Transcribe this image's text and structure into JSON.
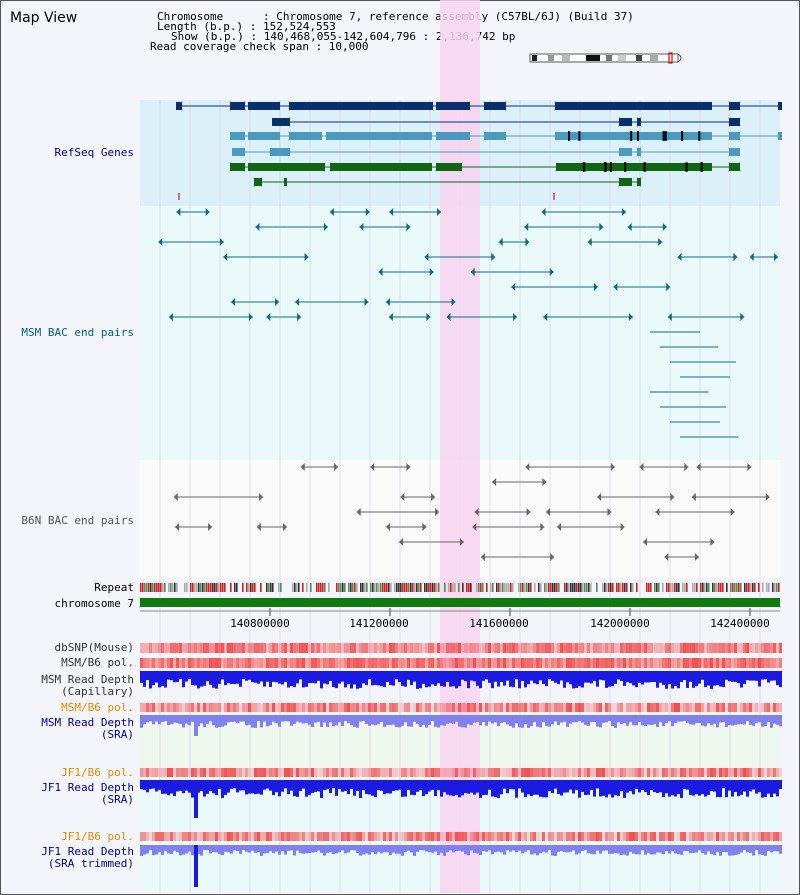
{
  "title": "Map View",
  "info": {
    "chromosome": "Chromosome      : Chromosome 7, reference assembly (C57BL/6J) (Build 37)",
    "length": "Length (b.p.) : 152,524,553",
    "show": "Show (b.p.) : 140,468,055-142,604,796 : 2,136,742 bp",
    "coverage": "Read coverage check span : 10,000"
  },
  "tracks": {
    "refseq": "RefSeq Genes",
    "msm_bac": "MSM BAC end pairs",
    "b6n_bac": "B6N BAC end pairs",
    "repeat": "Repeat",
    "chromosome": "chromosome 7",
    "dbsnp": "dbSNP(Mouse)",
    "msm_b6_pol": "MSM/B6 pol.",
    "msm_depth_cap_1": "MSM Read Depth",
    "msm_depth_cap_2": "(Capillary)",
    "msm_b6_pol2": "MSM/B6 pol.",
    "msm_depth_sra_1": "MSM Read Depth",
    "msm_depth_sra_2": "(SRA)",
    "jf1_pol": "JF1/B6 pol.",
    "jf1_depth_1": "JF1 Read Depth",
    "jf1_depth_2": "(SRA)",
    "jf1_pol2": "JF1/B6 pol.",
    "jf1_trim_1": "JF1 Read Depth",
    "jf1_trim_2": "(SRA trimmed)"
  },
  "axis": {
    "ticks": [
      "140800000",
      "141200000",
      "141600000",
      "142000000",
      "142400000"
    ]
  },
  "colors": {
    "refseq_bg": "#dcf0fa",
    "bac_bg": "#eafafa",
    "highlight": "#f8d4f0",
    "gene_dark": "#0a2f6b",
    "gene_light": "#4a9ac0",
    "gene_green": "#116611",
    "msm_line": "#0e6a8a",
    "b6n_line": "#666666",
    "chrom_green": "#0f7a0f",
    "depth_blue": "#1a1ae0",
    "depth_light": "#8080ee",
    "pol_red": "#f05050",
    "label_blue": "#00008b",
    "label_teal": "#006478",
    "label_orange": "#e08c00"
  }
}
